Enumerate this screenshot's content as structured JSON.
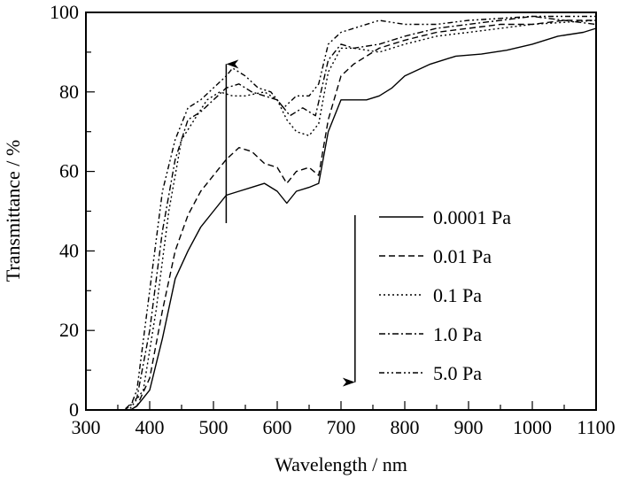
{
  "chart_data": {
    "type": "line",
    "title": "",
    "xlabel": "Wavelength / nm",
    "ylabel": "Transmittance / %",
    "xlim": [
      300,
      1100
    ],
    "ylim": [
      0,
      100
    ],
    "xticks": [
      300,
      400,
      500,
      600,
      700,
      800,
      900,
      1000,
      1100
    ],
    "yticks": [
      0,
      20,
      40,
      60,
      80,
      100
    ],
    "grid": false,
    "legend_position": "center-right",
    "annotations": [
      {
        "type": "arrow",
        "direction": "up",
        "x": 520,
        "y_from": 47,
        "y_to": 87
      },
      {
        "type": "arrow",
        "direction": "down",
        "x": 722,
        "y_from": 49,
        "y_to": 7
      }
    ],
    "series": [
      {
        "name": "0.0001 Pa",
        "style": "solid",
        "x": [
          300,
          370,
          380,
          400,
          420,
          440,
          460,
          480,
          500,
          520,
          540,
          560,
          580,
          600,
          615,
          630,
          650,
          665,
          680,
          700,
          720,
          740,
          760,
          780,
          800,
          840,
          880,
          920,
          960,
          1000,
          1040,
          1080,
          1100
        ],
        "y": [
          0,
          0,
          1,
          5,
          18,
          33,
          40,
          46,
          50,
          54,
          55,
          56,
          57,
          55,
          52,
          55,
          56,
          57,
          70,
          78,
          78,
          78,
          79,
          81,
          84,
          87,
          89,
          89.5,
          90.5,
          92,
          94,
          95,
          96
        ]
      },
      {
        "name": "0.01 Pa",
        "style": "dashed",
        "x": [
          300,
          370,
          380,
          400,
          420,
          440,
          460,
          480,
          500,
          520,
          540,
          560,
          580,
          600,
          615,
          630,
          650,
          665,
          680,
          700,
          720,
          740,
          760,
          780,
          800,
          850,
          900,
          950,
          1000,
          1050,
          1100
        ],
        "y": [
          0,
          0,
          1,
          8,
          25,
          40,
          49,
          55,
          59,
          63,
          66,
          65,
          62,
          61,
          57,
          60,
          61,
          59,
          73,
          84,
          87,
          89,
          91,
          92,
          93,
          95,
          96,
          97,
          97,
          98,
          98
        ]
      },
      {
        "name": "0.1 Pa",
        "style": "dotted",
        "x": [
          300,
          360,
          370,
          390,
          410,
          430,
          450,
          470,
          490,
          510,
          530,
          550,
          580,
          600,
          615,
          630,
          650,
          665,
          680,
          700,
          720,
          760,
          800,
          850,
          900,
          1000,
          1100
        ],
        "y": [
          0,
          0,
          0.5,
          5,
          25,
          50,
          68,
          73,
          78,
          80,
          79,
          79,
          80,
          78,
          73,
          70,
          69,
          72,
          85,
          91,
          91,
          90,
          92,
          94,
          95,
          97,
          98
        ]
      },
      {
        "name": "1.0 Pa",
        "style": "dashdot",
        "x": [
          300,
          360,
          380,
          400,
          420,
          440,
          460,
          480,
          500,
          520,
          540,
          560,
          580,
          600,
          620,
          640,
          660,
          680,
          700,
          720,
          760,
          800,
          850,
          900,
          1000,
          1100
        ],
        "y": [
          0,
          0,
          3,
          20,
          45,
          63,
          73,
          75,
          78,
          81,
          82,
          80,
          79,
          78,
          74,
          76,
          74,
          88,
          92,
          91,
          92,
          94,
          96,
          97,
          99,
          97
        ]
      },
      {
        "name": "5.0 Pa",
        "style": "dashdotdot",
        "x": [
          300,
          360,
          370,
          380,
          400,
          420,
          440,
          460,
          480,
          500,
          520,
          530,
          550,
          570,
          590,
          610,
          630,
          650,
          665,
          680,
          700,
          720,
          760,
          800,
          850,
          900,
          1000,
          1100
        ],
        "y": [
          0,
          0,
          1,
          5,
          30,
          55,
          68,
          76,
          78,
          81,
          84,
          86,
          84,
          81,
          80,
          76,
          79,
          79,
          82,
          92,
          95,
          96,
          98,
          97,
          97,
          98,
          99,
          99
        ]
      }
    ]
  }
}
